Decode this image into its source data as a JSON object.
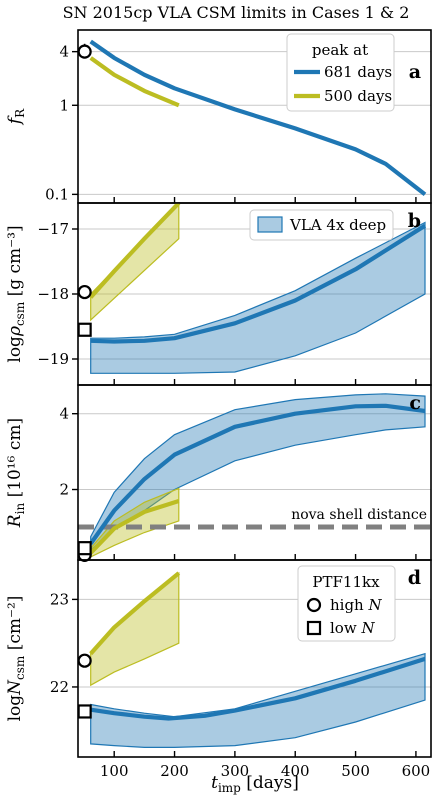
{
  "chart_data": {
    "title": "SN 2015cp VLA CSM limits in Cases 1 & 2",
    "type": "line",
    "xlabel_main": "t",
    "xlabel_sub": "imp",
    "xlabel_unit": "[days]",
    "xlim": [
      40,
      625
    ],
    "xticks": [
      100,
      200,
      300,
      400,
      500,
      600
    ],
    "colors": {
      "blue": "#1f77b4",
      "olive": "#bcbd22",
      "shell": "#808080"
    },
    "panels": [
      {
        "id": "a",
        "letter": "a",
        "ylabel_main": "f",
        "ylabel_sub": "R",
        "scale": "log",
        "ylim": [
          0.08,
          7
        ],
        "yticks": [
          0.1,
          1,
          4
        ],
        "ytick_labels": [
          "0.1",
          "1",
          "4"
        ],
        "legend": {
          "title": "peak at",
          "position": "top-right",
          "entries": [
            {
              "label": "681 days",
              "color": "blue"
            },
            {
              "label": "500 days",
              "color": "olive"
            }
          ]
        },
        "lines": [
          {
            "name": "681 days",
            "color": "blue",
            "x": [
              61,
              100,
              150,
              200,
              300,
              400,
              500,
              550,
              600,
              615
            ],
            "y": [
              5.2,
              3.4,
              2.2,
              1.55,
              0.9,
              0.55,
              0.32,
              0.22,
              0.12,
              0.1
            ]
          },
          {
            "name": "500 days",
            "color": "olive",
            "x": [
              61,
              100,
              150,
              207
            ],
            "y": [
              3.4,
              2.2,
              1.45,
              1.0
            ]
          }
        ],
        "points": [
          {
            "marker": "circle",
            "x": 51,
            "y": 4.0,
            "err_low": 3.35,
            "err_high": 4.9
          }
        ]
      },
      {
        "id": "b",
        "letter": "b",
        "ylabel_main": "logρ",
        "ylabel_sub": "csm",
        "ylabel_unit": "[g cm⁻³]",
        "scale": "linear",
        "ylim": [
          -19.4,
          -16.6
        ],
        "yticks": [
          -19,
          -18,
          -17
        ],
        "ytick_labels": [
          "−19",
          "−18",
          "−17"
        ],
        "legend": {
          "position": "top-right",
          "entries": [
            {
              "label": "VLA 4x deep",
              "color": "blue",
              "kind": "patch"
            }
          ]
        },
        "lines": [
          {
            "name": "blue",
            "color": "blue",
            "x": [
              61,
              100,
              150,
              200,
              300,
              400,
              500,
              615
            ],
            "y": [
              -18.72,
              -18.73,
              -18.72,
              -18.68,
              -18.45,
              -18.1,
              -17.62,
              -16.95
            ]
          },
          {
            "name": "olive",
            "color": "olive",
            "x": [
              61,
              100,
              150,
              207
            ],
            "y": [
              -18.05,
              -17.65,
              -17.15,
              -16.6
            ]
          }
        ],
        "bands": [
          {
            "color": "blue",
            "x": [
              61,
              100,
              150,
              200,
              300,
              400,
              500,
              615
            ],
            "upper": [
              -18.68,
              -18.68,
              -18.66,
              -18.62,
              -18.33,
              -17.95,
              -17.45,
              -16.9
            ],
            "lower": [
              -19.22,
              -19.22,
              -19.22,
              -19.22,
              -19.2,
              -18.95,
              -18.6,
              -18.0
            ]
          },
          {
            "color": "olive",
            "x": [
              61,
              207
            ],
            "upper": [
              -18.0,
              -16.6
            ],
            "lower": [
              -18.4,
              -17.15
            ]
          }
        ],
        "points": [
          {
            "marker": "circle",
            "x": 51,
            "y": -17.97
          },
          {
            "marker": "square",
            "x": 51,
            "y": -18.55
          }
        ]
      },
      {
        "id": "c",
        "letter": "c",
        "ylabel_main": "R",
        "ylabel_sub": "in",
        "ylabel_unit": "[10¹⁶ cm]",
        "scale": "log",
        "ylim": [
          1.05,
          5.2
        ],
        "yticks": [
          2,
          4
        ],
        "ytick_labels": [
          "2",
          "4"
        ],
        "hline": {
          "y": 1.42,
          "label": "nova shell distance",
          "color": "shell"
        },
        "lines": [
          {
            "name": "blue",
            "color": "blue",
            "x": [
              61,
              100,
              150,
              200,
              300,
              400,
              500,
              550,
              615
            ],
            "y": [
              1.22,
              1.65,
              2.2,
              2.75,
              3.55,
              4.0,
              4.28,
              4.3,
              4.1
            ]
          },
          {
            "name": "olive",
            "color": "olive",
            "x": [
              61,
              100,
              150,
              207
            ],
            "y": [
              1.12,
              1.4,
              1.63,
              1.8
            ]
          }
        ],
        "bands": [
          {
            "color": "blue",
            "x": [
              61,
              100,
              150,
              200,
              300,
              400,
              500,
              550,
              615
            ],
            "upper": [
              1.3,
              1.95,
              2.65,
              3.3,
              4.15,
              4.55,
              4.75,
              4.8,
              4.7
            ],
            "lower": [
              1.15,
              1.38,
              1.65,
              2.0,
              2.6,
              3.0,
              3.3,
              3.45,
              3.55
            ]
          },
          {
            "color": "olive",
            "x": [
              61,
              100,
              150,
              207
            ],
            "upper": [
              1.17,
              1.5,
              1.78,
              2.02
            ],
            "lower": [
              1.08,
              1.2,
              1.35,
              1.5
            ]
          }
        ],
        "points": [
          {
            "marker": "circle",
            "x": 51,
            "y": 1.1
          },
          {
            "marker": "square",
            "x": 51,
            "y": 1.17
          }
        ]
      },
      {
        "id": "d",
        "letter": "d",
        "ylabel_main": "logN",
        "ylabel_sub": "csm",
        "ylabel_unit": "[cm⁻²]",
        "scale": "linear",
        "ylim": [
          21.2,
          23.45
        ],
        "yticks": [
          22,
          23
        ],
        "ytick_labels": [
          "22",
          "23"
        ],
        "legend": {
          "title": "PTF11kx",
          "position": "top-right",
          "entries": [
            {
              "label": "high N",
              "label_main": "high ",
              "label_italic": "N",
              "marker": "circle"
            },
            {
              "label": "low N",
              "label_main": "low ",
              "label_italic": "N",
              "marker": "square"
            }
          ]
        },
        "lines": [
          {
            "name": "blue",
            "color": "blue",
            "x": [
              61,
              100,
              150,
              190,
              250,
              300,
              400,
              500,
              615
            ],
            "y": [
              21.74,
              21.7,
              21.66,
              21.64,
              21.67,
              21.73,
              21.87,
              22.07,
              22.32
            ]
          },
          {
            "name": "olive",
            "color": "olive",
            "x": [
              61,
              100,
              150,
              207
            ],
            "y": [
              22.38,
              22.68,
              22.98,
              23.3
            ]
          }
        ],
        "bands": [
          {
            "color": "blue",
            "x": [
              61,
              100,
              150,
              200,
              300,
              400,
              500,
              615
            ],
            "upper": [
              21.8,
              21.75,
              21.7,
              21.66,
              21.75,
              21.95,
              22.15,
              22.38
            ],
            "lower": [
              21.35,
              21.33,
              21.31,
              21.31,
              21.33,
              21.42,
              21.6,
              21.85
            ]
          },
          {
            "color": "olive",
            "x": [
              61,
              100,
              150,
              207
            ],
            "upper": [
              22.38,
              22.68,
              22.98,
              23.3
            ],
            "lower": [
              22.02,
              22.17,
              22.32,
              22.5
            ]
          }
        ],
        "points": [
          {
            "marker": "circle",
            "x": 51,
            "y": 22.3
          },
          {
            "marker": "square",
            "x": 51,
            "y": 21.72
          }
        ]
      }
    ]
  }
}
